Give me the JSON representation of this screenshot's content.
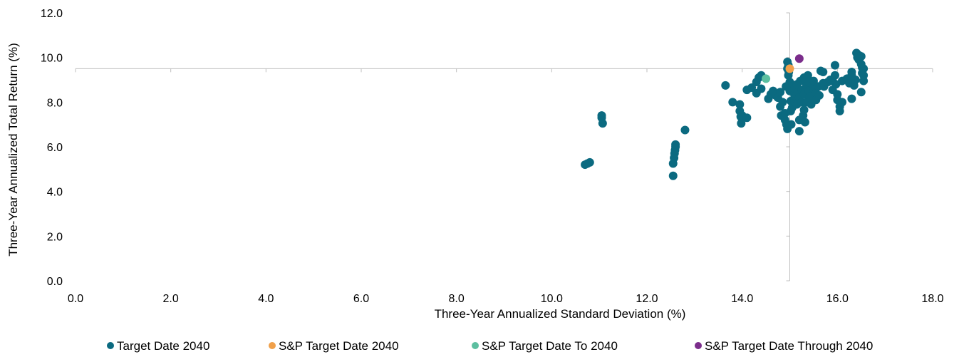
{
  "chart_data": {
    "type": "scatter",
    "xlabel": "Three-Year Annualized Standard Deviation (%)",
    "ylabel": "Three-Year Annualized Total Return (%)",
    "xlim": [
      0,
      18
    ],
    "ylim": [
      0,
      12
    ],
    "xticks": [
      "0.0",
      "2.0",
      "4.0",
      "6.0",
      "8.0",
      "10.0",
      "12.0",
      "14.0",
      "16.0",
      "18.0"
    ],
    "yticks": [
      "0.0",
      "2.0",
      "4.0",
      "6.0",
      "8.0",
      "10.0",
      "12.0"
    ],
    "crosshair": {
      "x": 15.0,
      "y": 9.5
    },
    "grid": false,
    "legend_position": "bottom",
    "series": [
      {
        "name": "Target Date 2040",
        "color": "#0b6a80",
        "points": [
          [
            10.7,
            5.2
          ],
          [
            10.75,
            5.25
          ],
          [
            10.8,
            5.3
          ],
          [
            11.05,
            7.4
          ],
          [
            11.05,
            7.3
          ],
          [
            11.07,
            7.05
          ],
          [
            12.55,
            4.7
          ],
          [
            12.55,
            5.25
          ],
          [
            12.57,
            5.5
          ],
          [
            12.58,
            5.7
          ],
          [
            12.59,
            5.85
          ],
          [
            12.6,
            6.0
          ],
          [
            12.6,
            6.1
          ],
          [
            12.8,
            6.75
          ],
          [
            13.65,
            8.75
          ],
          [
            13.8,
            8.0
          ],
          [
            13.95,
            7.9
          ],
          [
            13.95,
            7.6
          ],
          [
            13.97,
            7.35
          ],
          [
            13.98,
            7.05
          ],
          [
            14.0,
            7.4
          ],
          [
            14.1,
            7.3
          ],
          [
            14.1,
            8.55
          ],
          [
            14.2,
            8.65
          ],
          [
            14.3,
            8.4
          ],
          [
            14.3,
            8.9
          ],
          [
            14.35,
            9.1
          ],
          [
            14.4,
            9.2
          ],
          [
            14.4,
            8.6
          ],
          [
            14.55,
            8.15
          ],
          [
            14.6,
            8.35
          ],
          [
            14.65,
            8.5
          ],
          [
            14.7,
            8.3
          ],
          [
            14.75,
            8.2
          ],
          [
            14.8,
            8.45
          ],
          [
            14.8,
            7.8
          ],
          [
            14.82,
            7.4
          ],
          [
            14.85,
            8.0
          ],
          [
            14.9,
            7.5
          ],
          [
            14.9,
            7.2
          ],
          [
            14.92,
            8.7
          ],
          [
            14.93,
            7.0
          ],
          [
            14.95,
            6.8
          ],
          [
            14.95,
            9.8
          ],
          [
            14.95,
            9.5
          ],
          [
            14.97,
            9.65
          ],
          [
            14.97,
            9.2
          ],
          [
            14.98,
            9.35
          ],
          [
            15.0,
            8.9
          ],
          [
            15.0,
            8.5
          ],
          [
            15.02,
            8.05
          ],
          [
            15.02,
            7.6
          ],
          [
            15.03,
            7.0
          ],
          [
            15.05,
            8.7
          ],
          [
            15.05,
            7.75
          ],
          [
            15.1,
            8.0
          ],
          [
            15.1,
            8.3
          ],
          [
            15.1,
            8.6
          ],
          [
            15.15,
            8.8
          ],
          [
            15.15,
            7.9
          ],
          [
            15.17,
            8.45
          ],
          [
            15.2,
            6.7
          ],
          [
            15.2,
            7.2
          ],
          [
            15.2,
            8.2
          ],
          [
            15.22,
            8.95
          ],
          [
            15.25,
            8.0
          ],
          [
            15.25,
            8.55
          ],
          [
            15.28,
            7.4
          ],
          [
            15.3,
            7.65
          ],
          [
            15.3,
            9.1
          ],
          [
            15.3,
            8.35
          ],
          [
            15.32,
            7.1
          ],
          [
            15.35,
            8.75
          ],
          [
            15.35,
            8.0
          ],
          [
            15.38,
            9.2
          ],
          [
            15.4,
            8.5
          ],
          [
            15.4,
            8.9
          ],
          [
            15.42,
            8.25
          ],
          [
            15.45,
            7.9
          ],
          [
            15.5,
            8.6
          ],
          [
            15.5,
            8.95
          ],
          [
            15.55,
            8.4
          ],
          [
            15.55,
            8.1
          ],
          [
            15.6,
            8.7
          ],
          [
            15.62,
            8.3
          ],
          [
            15.65,
            9.4
          ],
          [
            15.7,
            9.35
          ],
          [
            15.7,
            8.85
          ],
          [
            15.72,
            8.7
          ],
          [
            15.8,
            8.9
          ],
          [
            15.85,
            9.0
          ],
          [
            15.9,
            8.95
          ],
          [
            15.9,
            8.55
          ],
          [
            15.95,
            9.2
          ],
          [
            15.95,
            9.65
          ],
          [
            15.97,
            8.8
          ],
          [
            16.0,
            8.35
          ],
          [
            16.0,
            8.1
          ],
          [
            16.05,
            7.8
          ],
          [
            16.05,
            7.6
          ],
          [
            16.1,
            8.95
          ],
          [
            16.1,
            8.0
          ],
          [
            16.2,
            9.05
          ],
          [
            16.25,
            8.85
          ],
          [
            16.3,
            9.35
          ],
          [
            16.3,
            9.2
          ],
          [
            16.3,
            8.15
          ],
          [
            16.35,
            8.75
          ],
          [
            16.38,
            9.0
          ],
          [
            16.4,
            10.2
          ],
          [
            16.42,
            10.0
          ],
          [
            16.45,
            10.1
          ],
          [
            16.45,
            9.9
          ],
          [
            16.5,
            10.05
          ],
          [
            16.5,
            9.7
          ],
          [
            16.52,
            9.55
          ],
          [
            16.52,
            9.3
          ],
          [
            16.55,
            9.5
          ],
          [
            16.55,
            9.2
          ],
          [
            16.55,
            8.95
          ],
          [
            16.5,
            8.45
          ]
        ]
      },
      {
        "name": "S&P Target Date 2040",
        "color": "#f0a04a",
        "points": [
          [
            15.0,
            9.5
          ]
        ]
      },
      {
        "name": "S&P Target Date To 2040",
        "color": "#5cbfa0",
        "points": [
          [
            14.5,
            9.05
          ]
        ]
      },
      {
        "name": "S&P Target Date Through 2040",
        "color": "#7b2d8b",
        "points": [
          [
            15.2,
            9.95
          ]
        ]
      }
    ]
  }
}
